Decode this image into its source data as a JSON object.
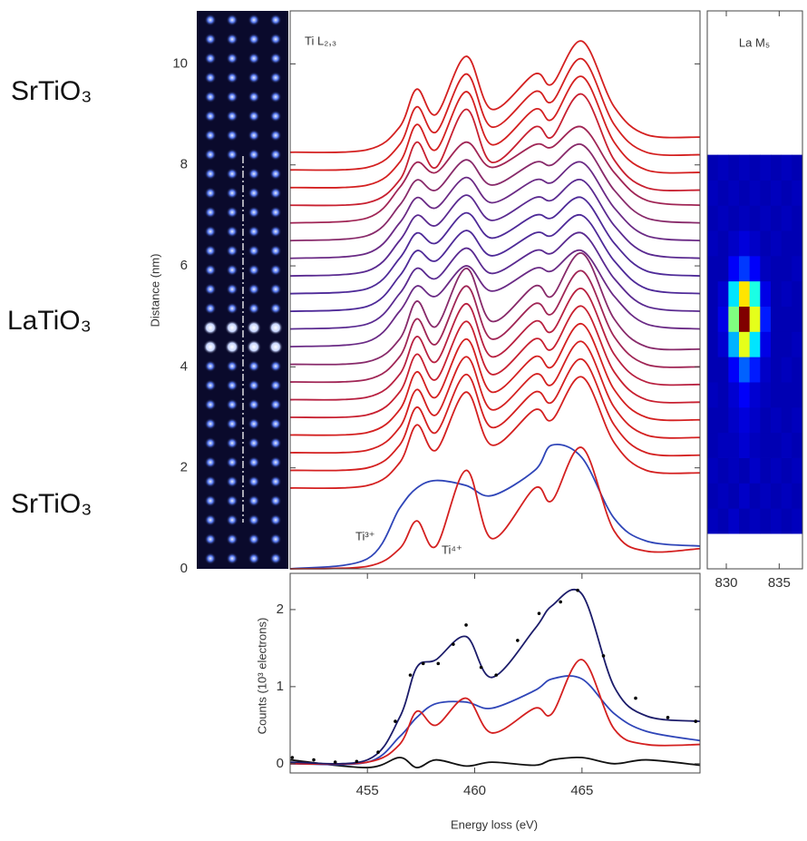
{
  "materials": [
    "SrTiO₃",
    "LaTiO₃",
    "SrTiO₃"
  ],
  "chart_data": [
    {
      "type": "line",
      "title": "Ti L₂,₃",
      "ylabel": "Distance (nm)",
      "annotations": [
        "Ti³⁺",
        "Ti⁴⁺"
      ],
      "xlim": [
        451.4,
        470.5
      ],
      "ylim": [
        0,
        11.05
      ],
      "yticks": [
        0,
        2,
        4,
        6,
        8,
        10
      ],
      "x": [
        451.4,
        455,
        456.5,
        457.3,
        458.2,
        459.6,
        460.8,
        462.8,
        463.6,
        465,
        466.5,
        468,
        470.5
      ],
      "series": [
        {
          "color": "#2f45b8",
          "values": [
            0,
            0.2,
            1.2,
            1.6,
            1.75,
            1.65,
            1.45,
            1.95,
            2.45,
            2.2,
            1.0,
            0.55,
            0.45
          ]
        },
        {
          "color": "#d42020",
          "values": [
            0,
            0.05,
            0.4,
            0.95,
            0.45,
            1.95,
            0.6,
            1.6,
            1.35,
            2.4,
            0.75,
            0.35,
            0.4
          ]
        },
        {
          "color": "#d42020",
          "values": [
            1.6,
            1.65,
            2.1,
            2.85,
            2.35,
            3.5,
            2.45,
            3.15,
            2.95,
            3.8,
            2.5,
            1.95,
            1.9
          ]
        },
        {
          "color": "#d42020",
          "values": [
            1.95,
            2,
            2.45,
            3.2,
            2.7,
            3.85,
            2.8,
            3.5,
            3.3,
            4.15,
            2.85,
            2.3,
            2.25
          ]
        },
        {
          "color": "#d42020",
          "values": [
            2.3,
            2.35,
            2.8,
            3.55,
            3.05,
            4.2,
            3.15,
            3.85,
            3.65,
            4.5,
            3.2,
            2.65,
            2.6
          ]
        },
        {
          "color": "#d42020",
          "values": [
            2.65,
            2.7,
            3.15,
            3.9,
            3.4,
            4.55,
            3.5,
            4.2,
            4,
            4.85,
            3.55,
            3,
            2.95
          ]
        },
        {
          "color": "#c82030",
          "values": [
            3,
            3.05,
            3.5,
            4.25,
            3.75,
            4.9,
            3.85,
            4.55,
            4.35,
            5.2,
            3.9,
            3.35,
            3.3
          ]
        },
        {
          "color": "#b82040",
          "values": [
            3.35,
            3.4,
            3.85,
            4.6,
            4.1,
            5.25,
            4.2,
            4.9,
            4.7,
            5.55,
            4.25,
            3.7,
            3.65
          ]
        },
        {
          "color": "#a02555",
          "values": [
            3.7,
            3.75,
            4.2,
            4.95,
            4.45,
            5.6,
            4.55,
            5.25,
            5.05,
            5.9,
            4.6,
            4.05,
            4
          ]
        },
        {
          "color": "#882a6a",
          "values": [
            4.05,
            4.1,
            4.55,
            5.3,
            4.8,
            5.95,
            4.9,
            5.6,
            5.4,
            6.25,
            4.95,
            4.4,
            4.35
          ]
        },
        {
          "color": "#6a2a85",
          "values": [
            4.4,
            4.5,
            5.1,
            5.6,
            5.4,
            6,
            5.5,
            5.95,
            5.9,
            6.3,
            5.4,
            4.85,
            4.75
          ]
        },
        {
          "color": "#5a2a90",
          "values": [
            4.75,
            4.85,
            5.45,
            5.95,
            5.75,
            6.35,
            5.85,
            6.3,
            6.25,
            6.65,
            5.75,
            5.2,
            5.1
          ]
        },
        {
          "color": "#4e2a98",
          "values": [
            5.1,
            5.2,
            5.8,
            6.3,
            6.1,
            6.7,
            6.2,
            6.65,
            6.6,
            7,
            6.1,
            5.55,
            5.45
          ]
        },
        {
          "color": "#4e2a98",
          "values": [
            5.45,
            5.55,
            6.15,
            6.65,
            6.45,
            7.05,
            6.55,
            7,
            6.95,
            7.35,
            6.45,
            5.9,
            5.8
          ]
        },
        {
          "color": "#5a2a90",
          "values": [
            5.8,
            5.9,
            6.5,
            7,
            6.8,
            7.4,
            6.9,
            7.35,
            7.3,
            7.7,
            6.8,
            6.25,
            6.15
          ]
        },
        {
          "color": "#6a2a85",
          "values": [
            6.15,
            6.25,
            6.85,
            7.35,
            7.15,
            7.75,
            7.25,
            7.7,
            7.65,
            8.05,
            7.15,
            6.6,
            6.5
          ]
        },
        {
          "color": "#882a6a",
          "values": [
            6.5,
            6.6,
            7.2,
            7.7,
            7.5,
            8.1,
            7.6,
            8.05,
            8,
            8.4,
            7.5,
            6.95,
            6.85
          ]
        },
        {
          "color": "#a02555",
          "values": [
            6.85,
            6.95,
            7.55,
            8.05,
            7.85,
            8.45,
            7.95,
            8.4,
            8.35,
            8.75,
            7.85,
            7.3,
            7.2
          ]
        },
        {
          "color": "#c82030",
          "values": [
            7.2,
            7.25,
            7.7,
            8.45,
            7.95,
            9.1,
            8.05,
            8.75,
            8.55,
            9.4,
            8.1,
            7.55,
            7.5
          ]
        },
        {
          "color": "#d42020",
          "values": [
            7.55,
            7.6,
            8.05,
            8.8,
            8.3,
            9.45,
            8.4,
            9.1,
            8.9,
            9.75,
            8.45,
            7.9,
            7.85
          ]
        },
        {
          "color": "#d42020",
          "values": [
            7.9,
            7.95,
            8.4,
            9.15,
            8.65,
            9.8,
            8.75,
            9.45,
            9.25,
            10.1,
            8.8,
            8.25,
            8.2
          ]
        },
        {
          "color": "#d42020",
          "values": [
            8.25,
            8.3,
            8.75,
            9.5,
            9,
            10.15,
            9.1,
            9.8,
            9.6,
            10.45,
            9.15,
            8.6,
            8.55
          ]
        }
      ]
    },
    {
      "type": "line",
      "ylabel": "Counts (10³ electrons)",
      "xlabel": "Energy loss (eV)",
      "xlim": [
        451.4,
        470.5
      ],
      "xticks": [
        455,
        460,
        465
      ],
      "ylim": [
        -0.12,
        2.47
      ],
      "yticks": [
        0,
        1,
        2
      ],
      "x": [
        451.4,
        455,
        456.5,
        457.3,
        458.2,
        459.6,
        460.8,
        462.8,
        463.6,
        465,
        466.5,
        468,
        470.5
      ],
      "series": [
        {
          "color": "#111111",
          "values": [
            0.05,
            -0.05,
            0.08,
            -0.05,
            0.05,
            -0.03,
            0.02,
            -0.02,
            0.05,
            0.08,
            0,
            0.05,
            -0.02
          ]
        },
        {
          "color": "#2f45b8",
          "values": [
            0,
            0.02,
            0.35,
            0.6,
            0.78,
            0.8,
            0.72,
            0.95,
            1.1,
            1.1,
            0.65,
            0.42,
            0.3
          ]
        },
        {
          "color": "#d42020",
          "values": [
            0,
            0.02,
            0.25,
            0.68,
            0.5,
            0.85,
            0.4,
            0.72,
            0.65,
            1.35,
            0.45,
            0.25,
            0.25
          ]
        },
        {
          "color": "#1c1c6a",
          "values": [
            0.02,
            0.05,
            0.6,
            1.25,
            1.35,
            1.65,
            1.12,
            1.75,
            2.05,
            2.2,
            1.0,
            0.62,
            0.55
          ]
        },
        {
          "type": "scatter",
          "color": "#000000",
          "x": [
            451.5,
            452.5,
            453.5,
            454.5,
            455.5,
            456.3,
            457,
            457.6,
            458.3,
            459,
            459.6,
            460.3,
            461,
            462,
            463,
            464,
            464.8,
            466,
            467.5,
            469,
            470.3
          ],
          "values": [
            0.08,
            0.05,
            0.02,
            0.03,
            0.15,
            0.55,
            1.15,
            1.3,
            1.3,
            1.55,
            1.8,
            1.25,
            1.15,
            1.6,
            1.95,
            2.1,
            2.25,
            1.4,
            0.85,
            0.6,
            0.55
          ]
        }
      ]
    },
    {
      "type": "heatmap",
      "title": "La M₅",
      "colormap": "jet",
      "xlim": [
        828.2,
        837.2
      ],
      "xticks": [
        830,
        835
      ],
      "ylim": [
        0,
        11.05
      ],
      "xbins": [
        828.2,
        829.2,
        830.2,
        831.2,
        832.2,
        833.2,
        834.2,
        835.2,
        836.2,
        837.2
      ],
      "ybins": [
        0.7,
        1.2,
        1.7,
        2.2,
        2.7,
        3.2,
        3.7,
        4.2,
        4.7,
        5.2,
        5.7,
        6.2,
        6.7,
        7.2,
        7.7,
        8.2
      ],
      "z": [
        [
          0.06,
          0.05,
          0.07,
          0.05,
          0.06,
          0.05,
          0.06,
          0.05,
          0.06
        ],
        [
          0.05,
          0.06,
          0.05,
          0.07,
          0.05,
          0.06,
          0.05,
          0.06,
          0.05
        ],
        [
          0.06,
          0.05,
          0.06,
          0.05,
          0.07,
          0.05,
          0.06,
          0.05,
          0.06
        ],
        [
          0.05,
          0.06,
          0.06,
          0.08,
          0.06,
          0.05,
          0.05,
          0.06,
          0.05
        ],
        [
          0.05,
          0.05,
          0.07,
          0.09,
          0.07,
          0.05,
          0.06,
          0.05,
          0.06
        ],
        [
          0.06,
          0.05,
          0.08,
          0.12,
          0.08,
          0.06,
          0.05,
          0.05,
          0.05
        ],
        [
          0.05,
          0.05,
          0.12,
          0.22,
          0.15,
          0.07,
          0.05,
          0.06,
          0.05
        ],
        [
          0.05,
          0.08,
          0.3,
          0.6,
          0.35,
          0.1,
          0.05,
          0.05,
          0.06
        ],
        [
          0.05,
          0.1,
          0.5,
          1.0,
          0.6,
          0.15,
          0.05,
          0.05,
          0.05
        ],
        [
          0.05,
          0.08,
          0.35,
          0.65,
          0.4,
          0.1,
          0.05,
          0.06,
          0.05
        ],
        [
          0.05,
          0.05,
          0.12,
          0.18,
          0.12,
          0.06,
          0.05,
          0.05,
          0.06
        ],
        [
          0.06,
          0.05,
          0.07,
          0.09,
          0.07,
          0.05,
          0.06,
          0.05,
          0.05
        ],
        [
          0.05,
          0.06,
          0.05,
          0.06,
          0.05,
          0.06,
          0.05,
          0.06,
          0.05
        ],
        [
          0.06,
          0.05,
          0.06,
          0.05,
          0.06,
          0.05,
          0.06,
          0.05,
          0.06
        ],
        [
          0.05,
          0.06,
          0.05,
          0.06,
          0.05,
          0.06,
          0.05,
          0.06,
          0.05
        ]
      ]
    }
  ]
}
